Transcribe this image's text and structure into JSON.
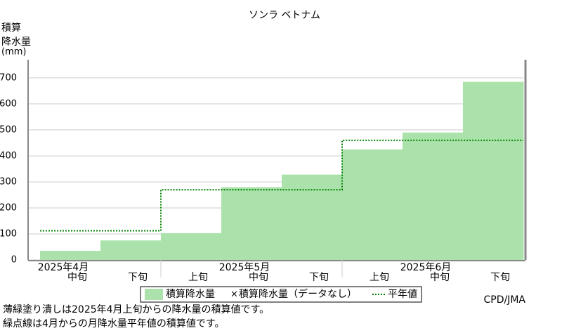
{
  "chart_data": {
    "type": "bar",
    "title": "ソンラ ベトナム",
    "y_label": [
      "積算",
      "降水量",
      "(mm)"
    ],
    "categories": [
      "中旬",
      "下旬",
      "上旬",
      "中旬",
      "下旬",
      "上旬",
      "中旬",
      "下旬"
    ],
    "month_labels": [
      "2025年4月",
      "2025年5月",
      "2025年6月"
    ],
    "series": [
      {
        "name": "積算降水量",
        "color": "#abe2ab",
        "values": [
          35,
          75,
          103,
          280,
          328,
          425,
          490,
          685
        ]
      },
      {
        "name": "平年値",
        "color": "#008000",
        "values": [
          112,
          112,
          270,
          270,
          270,
          460,
          460,
          460
        ]
      }
    ],
    "legend_extra": "積算降水量（データなし）",
    "ylim": [
      0,
      770
    ],
    "yticks": [
      0,
      100,
      200,
      300,
      400,
      500,
      600,
      700
    ],
    "grid": true,
    "credit": "CPD/JMA",
    "notes": [
      "薄緑塗り潰しは2025年4月上旬からの降水量の積算値です。",
      "緑点線は4月からの月降水量平年値の積算値です。"
    ]
  }
}
